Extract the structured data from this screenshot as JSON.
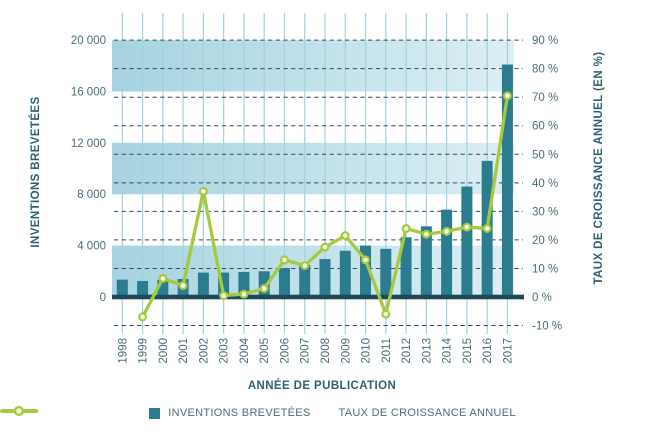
{
  "chart_data": {
    "type": "bar+line",
    "title": "",
    "xlabel": "ANNÉE DE PUBLICATION",
    "ylabel_left": "INVENTIONS BREVETÉES",
    "ylabel_right": "TAUX DE CROISSANCE ANNUEL (EN %)",
    "categories": [
      "1998",
      "1999",
      "2000",
      "2001",
      "2002",
      "2003",
      "2004",
      "2005",
      "2006",
      "2007",
      "2008",
      "2009",
      "2010",
      "2011",
      "2012",
      "2013",
      "2014",
      "2015",
      "2016",
      "2017"
    ],
    "series": [
      {
        "name": "INVENTIONS BREVETÉES",
        "type": "bar",
        "axis": "left",
        "values": [
          1350,
          1250,
          1350,
          1400,
          1900,
          1900,
          1950,
          2000,
          2250,
          2500,
          2950,
          3600,
          4000,
          3750,
          4650,
          5500,
          6800,
          8600,
          10600,
          18100
        ]
      },
      {
        "name": "TAUX DE CROISSANCE ANNUEL",
        "type": "line",
        "axis": "right",
        "values": [
          null,
          -7,
          6.5,
          4,
          37,
          0.5,
          1,
          3,
          13,
          11,
          17.5,
          21.5,
          13,
          -6,
          24,
          22,
          23,
          24.5,
          24,
          70.5
        ]
      }
    ],
    "y_left": {
      "min": 0,
      "max": 20000,
      "ticks": [
        0,
        4000,
        8000,
        12000,
        16000,
        20000
      ],
      "tick_labels": [
        "0",
        "4 000",
        "8 000",
        "12 000",
        "16 000",
        "20 000"
      ]
    },
    "y_right": {
      "min": -10,
      "max": 90,
      "ticks": [
        -10,
        0,
        10,
        20,
        30,
        40,
        50,
        60,
        70,
        80,
        90
      ],
      "tick_labels": [
        "-10 %",
        "0 %",
        "10 %",
        "20 %",
        "30 %",
        "40 %",
        "50 %",
        "60 %",
        "70 %",
        "80 %",
        "90 %"
      ]
    },
    "bands_left_axis": [
      [
        0,
        4000
      ],
      [
        8000,
        12000
      ],
      [
        16000,
        20000
      ]
    ],
    "grid": {
      "vertical": true,
      "horizontal_dashed": true
    },
    "legend_position": "bottom"
  },
  "colors": {
    "bar": "#2a7c8e",
    "line": "#a5c93f",
    "marker_fill": "#fbfdf2",
    "legend_marker_fill": "#e9f1cc",
    "band_start": "#a6d3e0",
    "band_end": "#dceff4",
    "vgrid": "#a3d1de",
    "dash": "#2e4d59",
    "baseline": "#1d4a57",
    "tick_label": "#4d6c78",
    "axis_title": "#30606f"
  }
}
